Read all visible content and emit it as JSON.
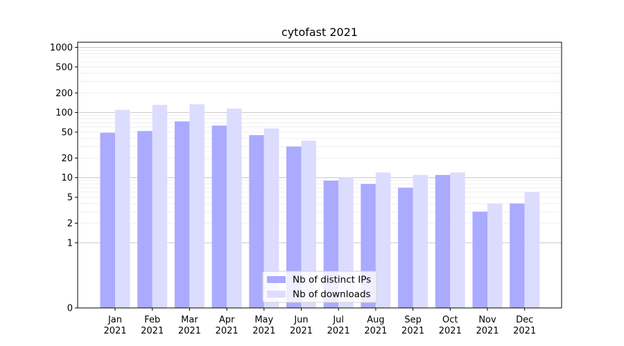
{
  "chart_data": {
    "type": "bar",
    "title": "cytofast 2021",
    "xlabel": "",
    "ylabel": "",
    "yscale": "symlog",
    "ylim": [
      0,
      1200
    ],
    "y_ticks": [
      0,
      1,
      2,
      5,
      10,
      20,
      50,
      100,
      200,
      500,
      1000
    ],
    "y_tick_labels": [
      "0",
      "1",
      "2",
      "5",
      "10",
      "20",
      "50",
      "100",
      "200",
      "500",
      "1000"
    ],
    "grid": true,
    "legend_position": "bottom-center",
    "categories": [
      "Jan\n2021",
      "Feb\n2021",
      "Mar\n2021",
      "Apr\n2021",
      "May\n2021",
      "Jun\n2021",
      "Jul\n2021",
      "Aug\n2021",
      "Sep\n2021",
      "Oct\n2021",
      "Nov\n2021",
      "Dec\n2021"
    ],
    "series": [
      {
        "name": "Nb of distinct IPs",
        "color": "#aaaaff",
        "values": [
          49,
          52,
          73,
          63,
          45,
          30,
          9,
          8,
          7,
          11,
          3,
          4
        ]
      },
      {
        "name": "Nb of downloads",
        "color": "#dcdcff",
        "values": [
          110,
          131,
          134,
          115,
          57,
          37,
          10,
          12,
          11,
          12,
          4,
          6
        ]
      }
    ]
  }
}
